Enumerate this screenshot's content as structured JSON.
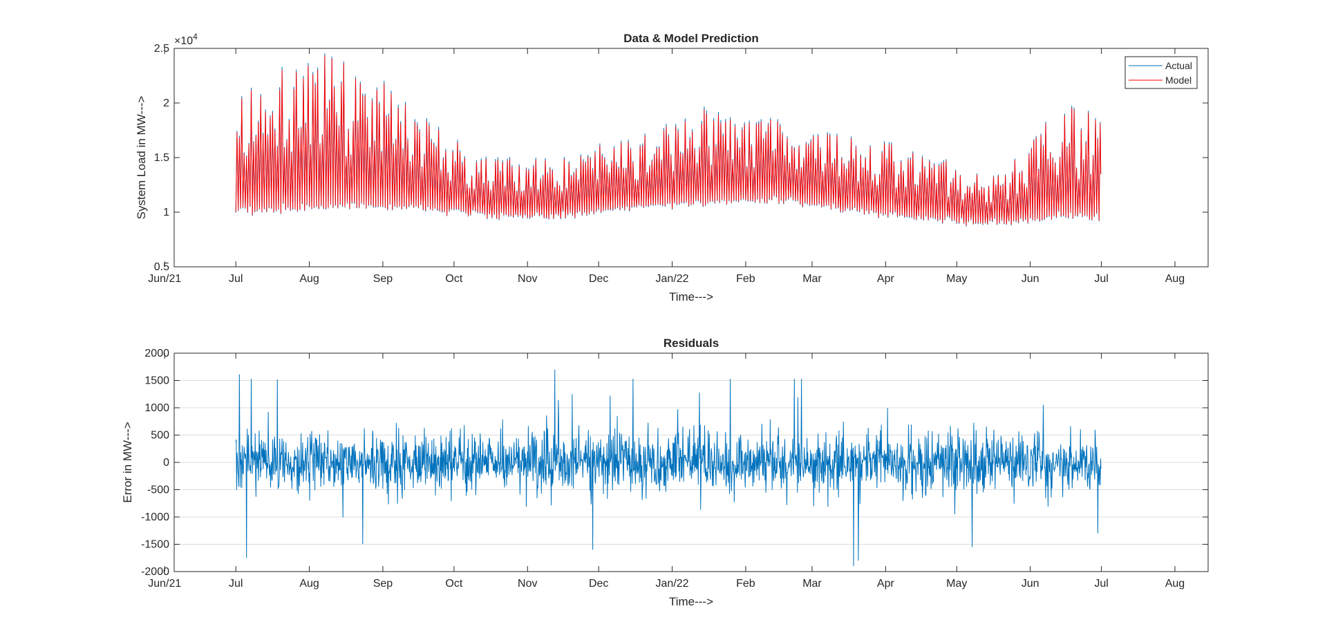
{
  "chart_data": [
    {
      "type": "line",
      "title": "Data & Model Prediction",
      "xlabel": "Time--->",
      "ylabel": "System Load in MW--->",
      "y_exponent_label": "×10",
      "y_exponent": "4",
      "xlim": [
        "2021-06-05",
        "2022-08-15"
      ],
      "ylim": [
        0.5,
        2.5
      ],
      "y_scale_factor": 10000,
      "yticks": [
        0.5,
        1,
        1.5,
        2,
        2.5
      ],
      "ytick_labels": [
        "0.5",
        "1",
        "1.5",
        "2",
        "2.5"
      ],
      "xticks": [
        "2021-06-01",
        "2021-07-01",
        "2021-08-01",
        "2021-09-01",
        "2021-10-01",
        "2021-11-01",
        "2021-12-01",
        "2022-01-01",
        "2022-02-01",
        "2022-03-01",
        "2022-04-01",
        "2022-05-01",
        "2022-06-01",
        "2022-07-01",
        "2022-08-01"
      ],
      "xtick_labels": [
        "Jun/21",
        "Jul",
        "Aug",
        "Sep",
        "Oct",
        "Nov",
        "Dec",
        "Jan/22",
        "Feb",
        "Mar",
        "Apr",
        "May",
        "Jun",
        "Jul",
        "Aug"
      ],
      "grid": false,
      "legend_position": "top-right",
      "data_range": [
        "2021-07-01",
        "2022-06-30"
      ],
      "sampling": "hourly",
      "series": [
        {
          "name": "Actual",
          "color": "#0072BD",
          "envelope_note": "monthly approximate daily min and max in MW",
          "monthly_envelope": {
            "months": [
              "2021-07",
              "2021-08",
              "2021-09",
              "2021-10",
              "2021-11",
              "2021-12",
              "2022-01",
              "2022-02",
              "2022-03",
              "2022-04",
              "2022-05",
              "2022-06"
            ],
            "min": [
              9000,
              9300,
              9500,
              9200,
              9000,
              9800,
              10000,
              10500,
              9500,
              8800,
              8600,
              8700
            ],
            "max": [
              23100,
              25000,
              20000,
              15000,
              15200,
              17200,
              19800,
              18500,
              17500,
              16000,
              13000,
              20000
            ]
          }
        },
        {
          "name": "Model",
          "color": "#FF0000",
          "envelope_note": "tracks Actual closely",
          "monthly_envelope": {
            "months": [
              "2021-07",
              "2021-08",
              "2021-09",
              "2021-10",
              "2021-11",
              "2021-12",
              "2022-01",
              "2022-02",
              "2022-03",
              "2022-04",
              "2022-05",
              "2022-06"
            ],
            "min": [
              9100,
              9400,
              9600,
              9300,
              9100,
              9900,
              10100,
              10600,
              9600,
              8900,
              8700,
              8800
            ],
            "max": [
              22800,
              24800,
              19700,
              14800,
              15000,
              17000,
              19500,
              18300,
              17300,
              15800,
              12900,
              19800
            ]
          }
        }
      ]
    },
    {
      "type": "line",
      "title": "Residuals",
      "xlabel": "Time--->",
      "ylabel": "Error in MW--->",
      "xlim": [
        "2021-06-05",
        "2022-08-15"
      ],
      "ylim": [
        -2000,
        2000
      ],
      "yticks": [
        -2000,
        -1500,
        -1000,
        -500,
        0,
        500,
        1000,
        1500,
        2000
      ],
      "ytick_labels": [
        "-2000",
        "-1500",
        "-1000",
        "-500",
        "0",
        "500",
        "1000",
        "1500",
        "2000"
      ],
      "xticks": [
        "2021-06-01",
        "2021-07-01",
        "2021-08-01",
        "2021-09-01",
        "2021-10-01",
        "2021-11-01",
        "2021-12-01",
        "2022-01-01",
        "2022-02-01",
        "2022-03-01",
        "2022-04-01",
        "2022-05-01",
        "2022-06-01",
        "2022-07-01",
        "2022-08-01"
      ],
      "xtick_labels": [
        "Jun/21",
        "Jul",
        "Aug",
        "Sep",
        "Oct",
        "Nov",
        "Dec",
        "Jan/22",
        "Feb",
        "Mar",
        "Apr",
        "May",
        "Jun",
        "Jul",
        "Aug"
      ],
      "grid": true,
      "data_range": [
        "2021-07-01",
        "2022-06-30"
      ],
      "sampling": "hourly",
      "series": [
        {
          "color": "#0072BD",
          "typical_range": [
            -600,
            600
          ],
          "notable_extremes": [
            {
              "date": "2021-07-05",
              "value": -1750
            },
            {
              "date": "2021-07-07",
              "value": 1530
            },
            {
              "date": "2021-07-18",
              "value": 1520
            },
            {
              "date": "2021-08-23",
              "value": -1500
            },
            {
              "date": "2021-11-12",
              "value": 1700
            },
            {
              "date": "2021-11-28",
              "value": -1600
            },
            {
              "date": "2021-12-15",
              "value": 1530
            },
            {
              "date": "2022-01-25",
              "value": 1530
            },
            {
              "date": "2022-02-21",
              "value": 1530
            },
            {
              "date": "2022-02-24",
              "value": 1530
            },
            {
              "date": "2022-03-18",
              "value": -1900
            },
            {
              "date": "2022-03-20",
              "value": -1800
            },
            {
              "date": "2022-05-07",
              "value": -1550
            },
            {
              "date": "2022-06-29",
              "value": -1300
            }
          ]
        }
      ]
    }
  ]
}
